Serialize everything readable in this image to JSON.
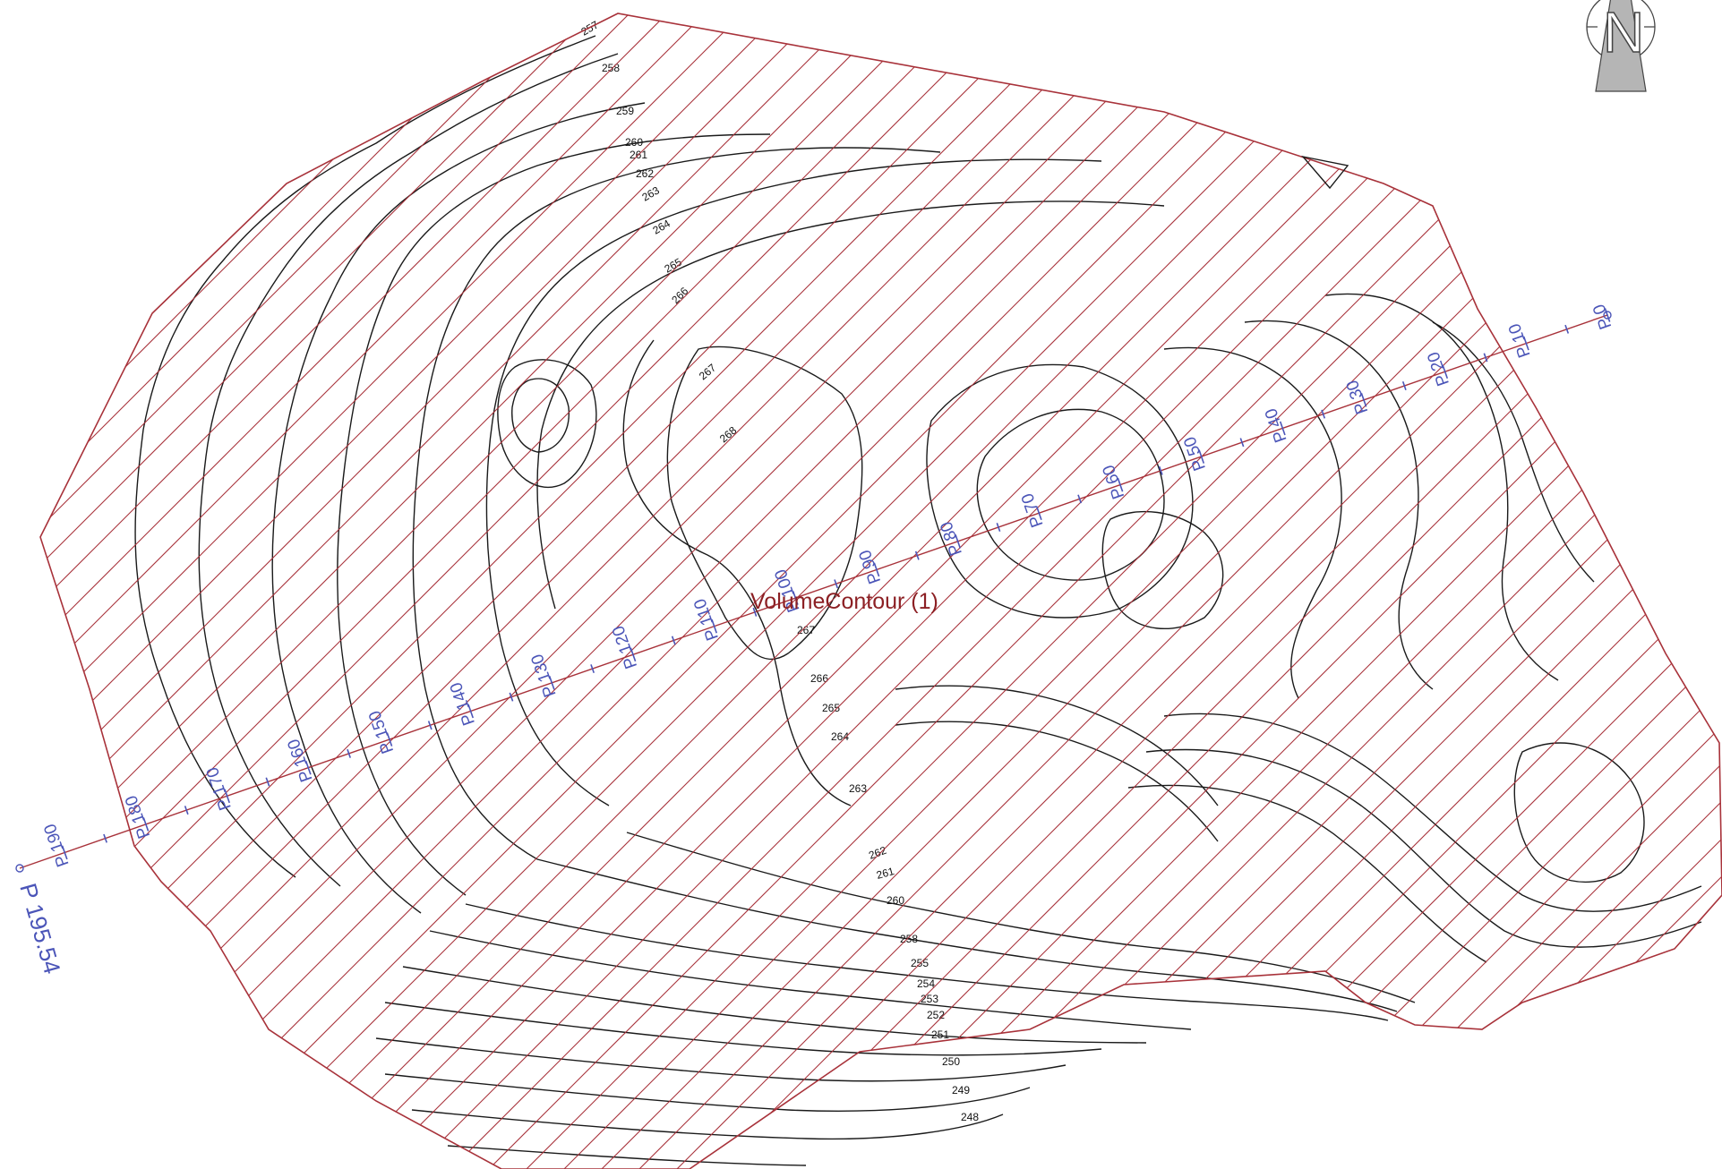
{
  "map": {
    "region_label": "VolumeContour (1)",
    "colors": {
      "boundary": "#a8323a",
      "hatch": "#a8323a",
      "contours": "#1a1a1a",
      "stations": "#4b55b8",
      "region_label": "#8c2024"
    },
    "north_arrow": {
      "icon": "north-arrow-icon",
      "letter": "N"
    },
    "profile": {
      "stations": [
        "P 0",
        "P 10",
        "P 20",
        "P 30",
        "P 40",
        "P 50",
        "P 60",
        "P 70",
        "P 80",
        "P 90",
        "P 100",
        "P 110",
        "P 120",
        "P 130",
        "P 140",
        "P 150",
        "P 160",
        "P 170",
        "P 180",
        "P 190"
      ],
      "end_station": "P 195.54"
    },
    "contour_labels": [
      "257",
      "258",
      "259",
      "260",
      "261",
      "262",
      "263",
      "264",
      "265",
      "266",
      "267",
      "268",
      "267",
      "266",
      "265",
      "264",
      "263",
      "262",
      "261",
      "260",
      "258",
      "255",
      "254",
      "253",
      "252",
      "251",
      "250",
      "249",
      "248"
    ]
  }
}
